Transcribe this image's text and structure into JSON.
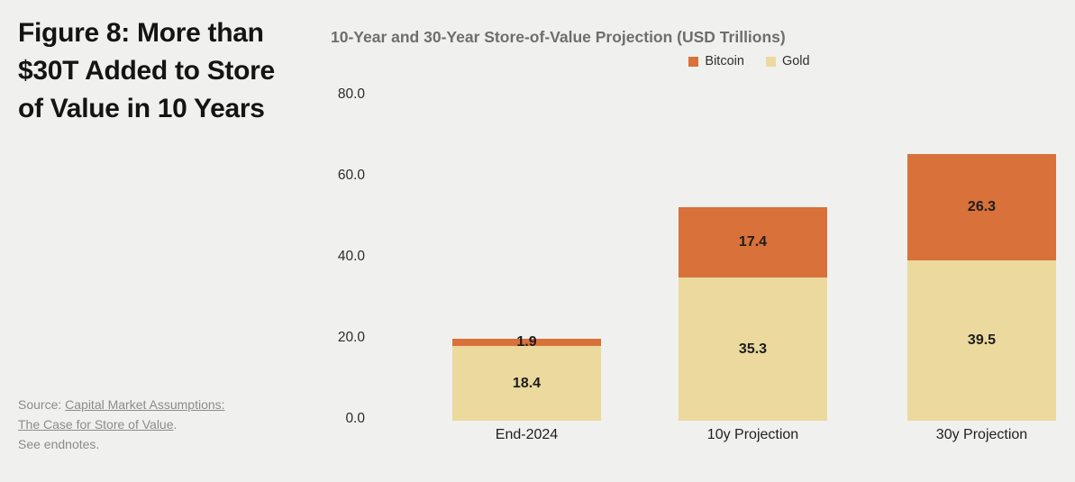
{
  "figure": {
    "title": "Figure 8: More than $30T Added to Store of Value in 10 Years"
  },
  "source": {
    "prefix": "Source: ",
    "link_text": "Capital Market Assumptions: The Case for Store of Value",
    "suffix": ".",
    "endnote": "See endnotes."
  },
  "chart_data": {
    "type": "bar",
    "stacked": true,
    "title": "10-Year and 30-Year Store-of-Value Projection (USD Trillions)",
    "categories": [
      "End-2024",
      "10y Projection",
      "30y Projection"
    ],
    "series": [
      {
        "name": "Bitcoin",
        "color": "#d8713a",
        "values": [
          1.9,
          17.4,
          26.3
        ]
      },
      {
        "name": "Gold",
        "color": "#ebd99e",
        "values": [
          18.4,
          35.3,
          39.5
        ]
      }
    ],
    "y_tick_labels": [
      "80.0",
      "60.0",
      "40.0",
      "20.0",
      "0.0"
    ],
    "ylim": [
      0,
      80
    ],
    "grid": false,
    "legend_position": "top-center",
    "value_label_format": "one-decimal"
  }
}
